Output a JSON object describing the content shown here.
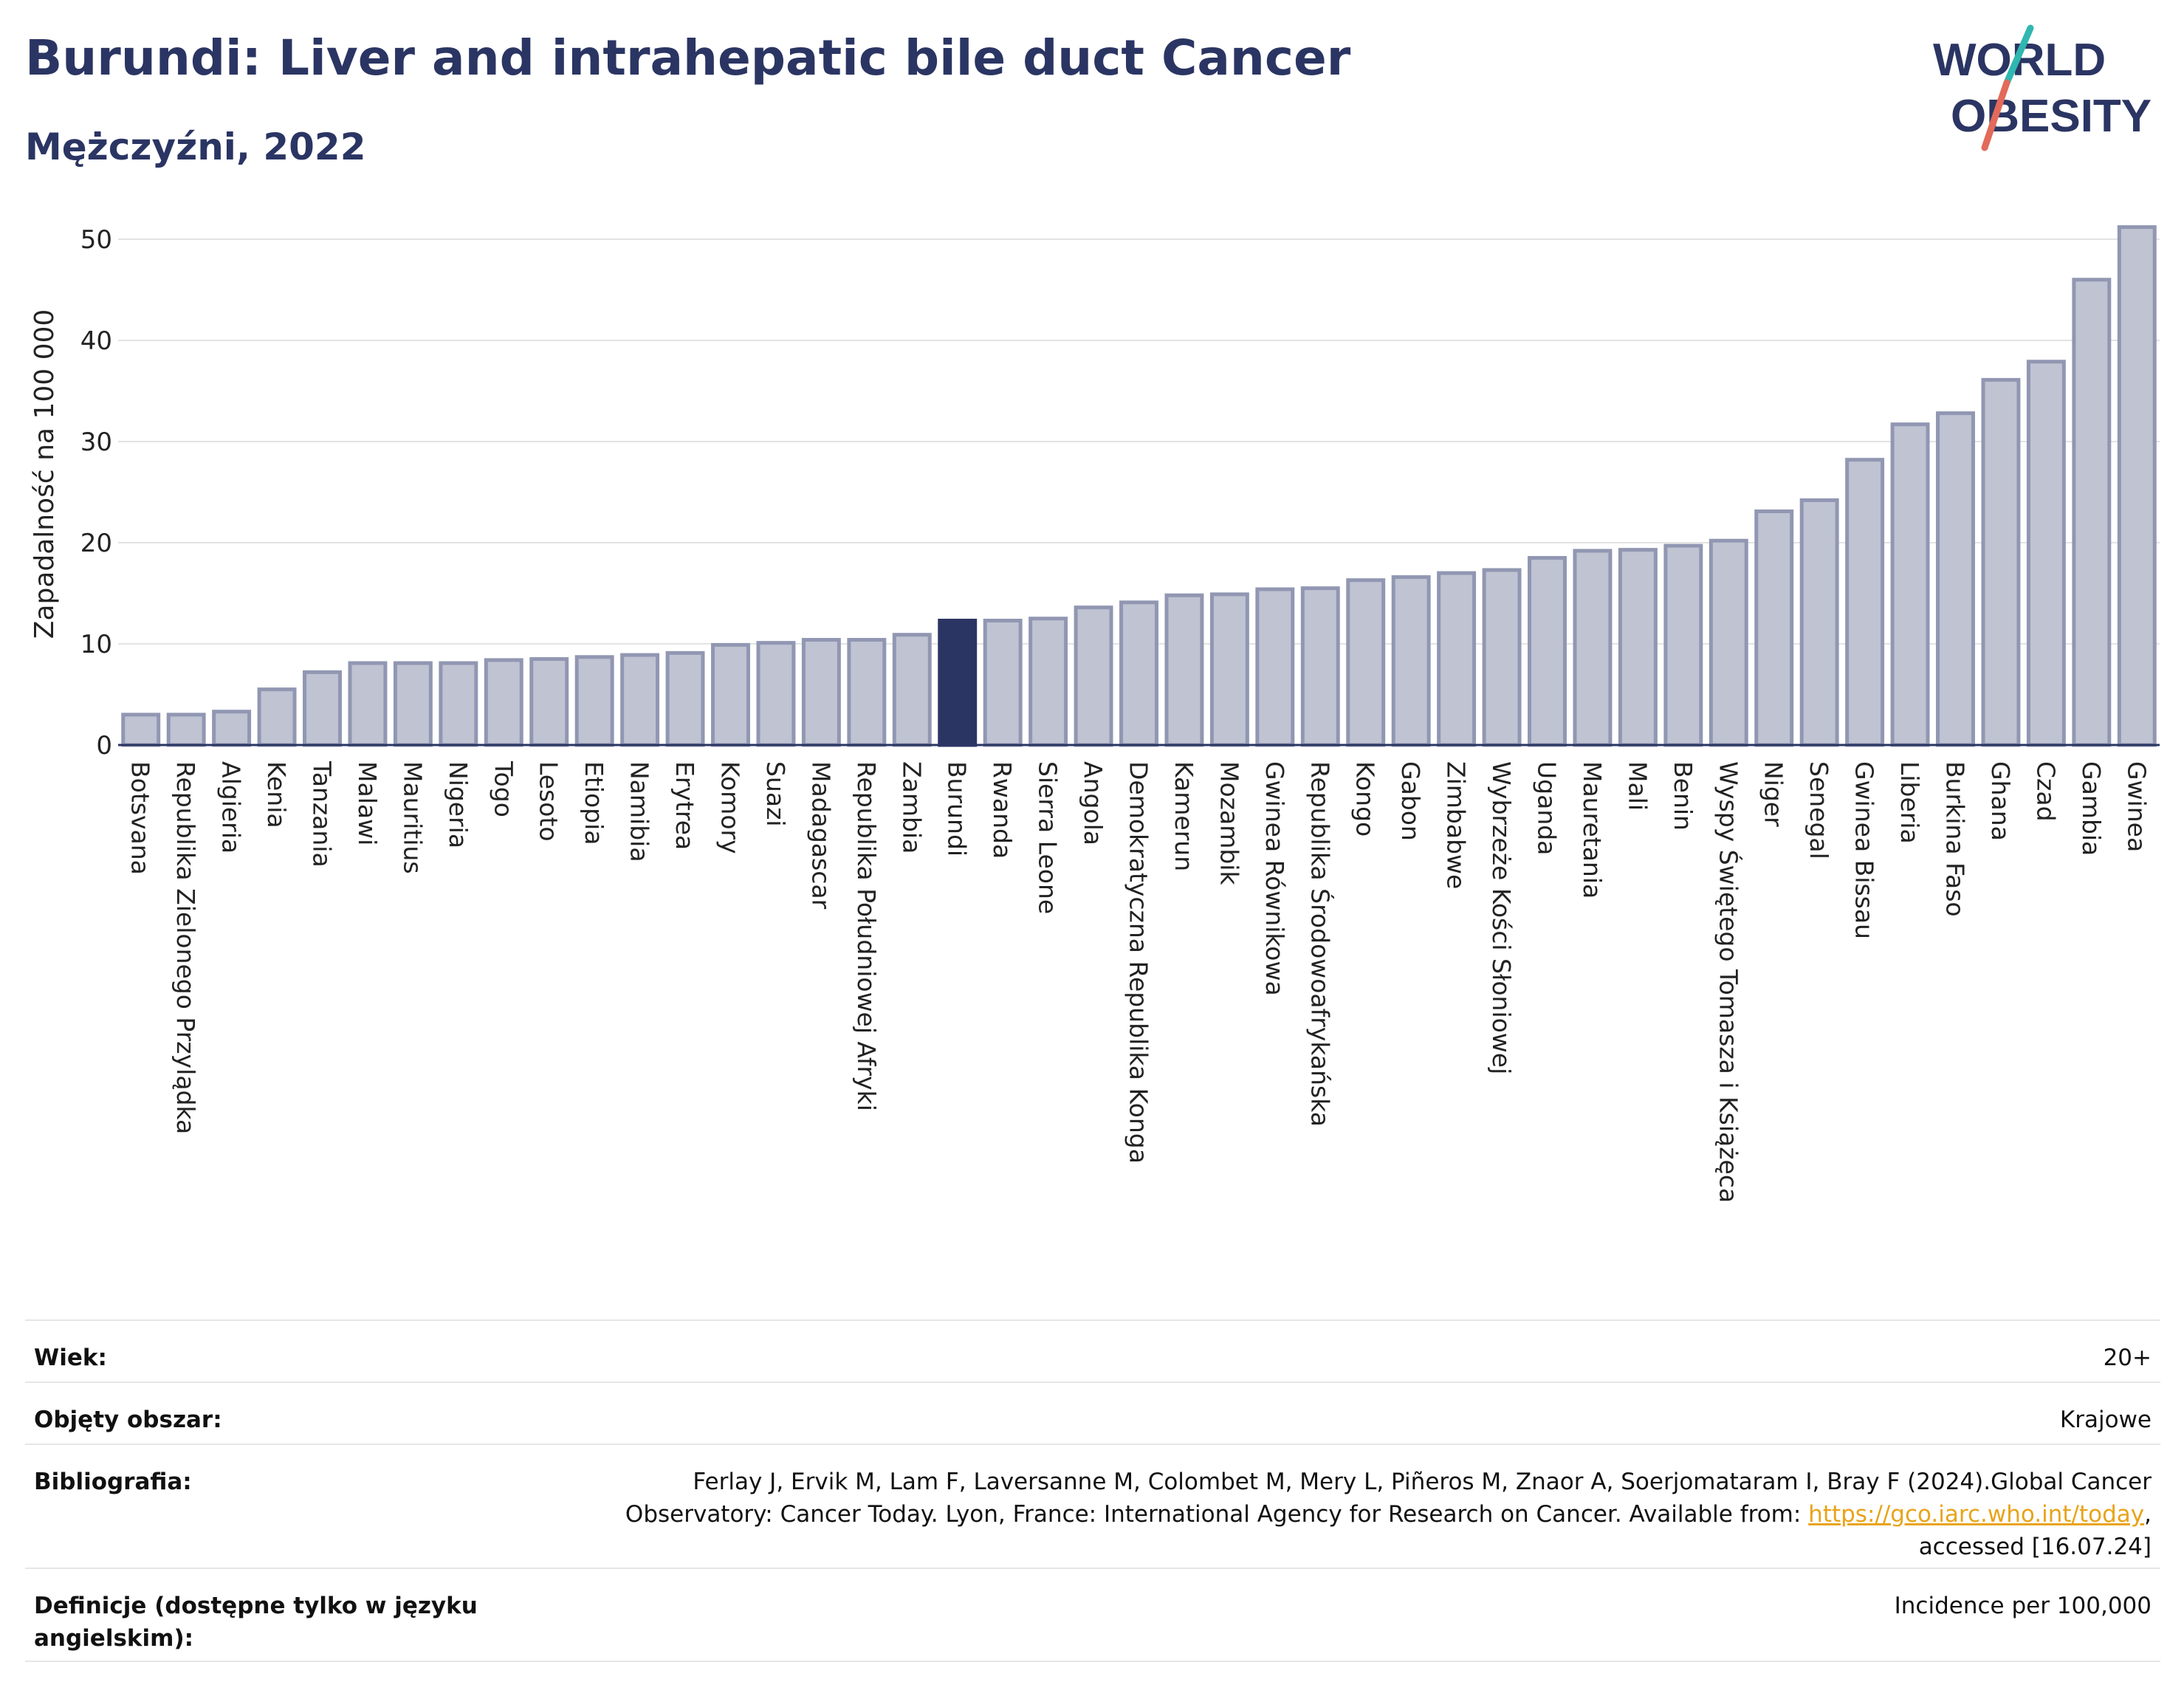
{
  "header": {
    "title": "Burundi: Liver and intrahepatic bile duct Cancer",
    "subtitle": "Mężczyźni, 2022",
    "logo_line1": "WORLD",
    "logo_line2": "OBESITY"
  },
  "colors": {
    "title": "#2b3563",
    "bar": "#bfc3d2",
    "bar_stroke": "#9197b2",
    "highlight": "#2b3563",
    "logo_teal": "#2fb7b0",
    "logo_red": "#e26a5a",
    "link": "#e8a41a"
  },
  "chart_data": {
    "type": "bar",
    "ylabel": "Zapadalność na 100 000",
    "ylim": [
      0,
      52
    ],
    "yticks": [
      0,
      10,
      20,
      30,
      40,
      50
    ],
    "grid": true,
    "highlight": "Burundi",
    "categories": [
      "Botsvana",
      "Republika Zielonego Przylądka",
      "Algieria",
      "Kenia",
      "Tanzania",
      "Malawi",
      "Mauritius",
      "Nigeria",
      "Togo",
      "Lesoto",
      "Etiopia",
      "Namibia",
      "Erytrea",
      "Komory",
      "Suazi",
      "Madagascar",
      "Republika Południowej Afryki",
      "Zambia",
      "Burundi",
      "Rwanda",
      "Sierra Leone",
      "Angola",
      "Demokratyczna Republika Konga",
      "Kamerun",
      "Mozambik",
      "Gwinea Równikowa",
      "Republika Środowoafrykańska",
      "Kongo",
      "Gabon",
      "Zimbabwe",
      "Wybrzeże Kości Słoniowej",
      "Uganda",
      "Mauretania",
      "Mali",
      "Benin",
      "Wyspy Świętego Tomasza i Książęca",
      "Niger",
      "Senegal",
      "Gwinea Bissau",
      "Liberia",
      "Burkina Faso",
      "Ghana",
      "Czad",
      "Gambia",
      "Gwinea"
    ],
    "values": [
      3.0,
      3.0,
      3.3,
      5.5,
      7.2,
      8.1,
      8.1,
      8.1,
      8.4,
      8.5,
      8.7,
      8.9,
      9.1,
      9.9,
      10.1,
      10.4,
      10.4,
      10.9,
      12.3,
      12.3,
      12.5,
      13.6,
      14.1,
      14.8,
      14.9,
      15.4,
      15.5,
      16.3,
      16.6,
      17.0,
      17.3,
      18.5,
      19.2,
      19.3,
      19.7,
      20.2,
      23.1,
      24.2,
      28.2,
      31.7,
      32.8,
      36.1,
      37.9,
      46.0,
      51.2
    ]
  },
  "meta": {
    "age_label": "Wiek:",
    "age_value": "20+",
    "area_label": "Objęty obszar:",
    "area_value": "Krajowe",
    "bib_label": "Bibliografia:",
    "bib_line1": "Ferlay J, Ervik M, Lam F, Laversanne M, Colombet M, Mery L, Piñeros M, Znaor A, Soerjomataram I, Bray F (2024).Global Cancer",
    "bib_line2_prefix": "Observatory: Cancer Today. Lyon, France: International Agency for Research on Cancer. Available from: ",
    "bib_link": "https://gco.iarc.who.int/today",
    "bib_line2_suffix": ",",
    "bib_line3": "accessed [16.07.24]",
    "def_label": "Definicje (dostępne tylko w języku angielskim):",
    "def_value": "Incidence per 100,000"
  }
}
